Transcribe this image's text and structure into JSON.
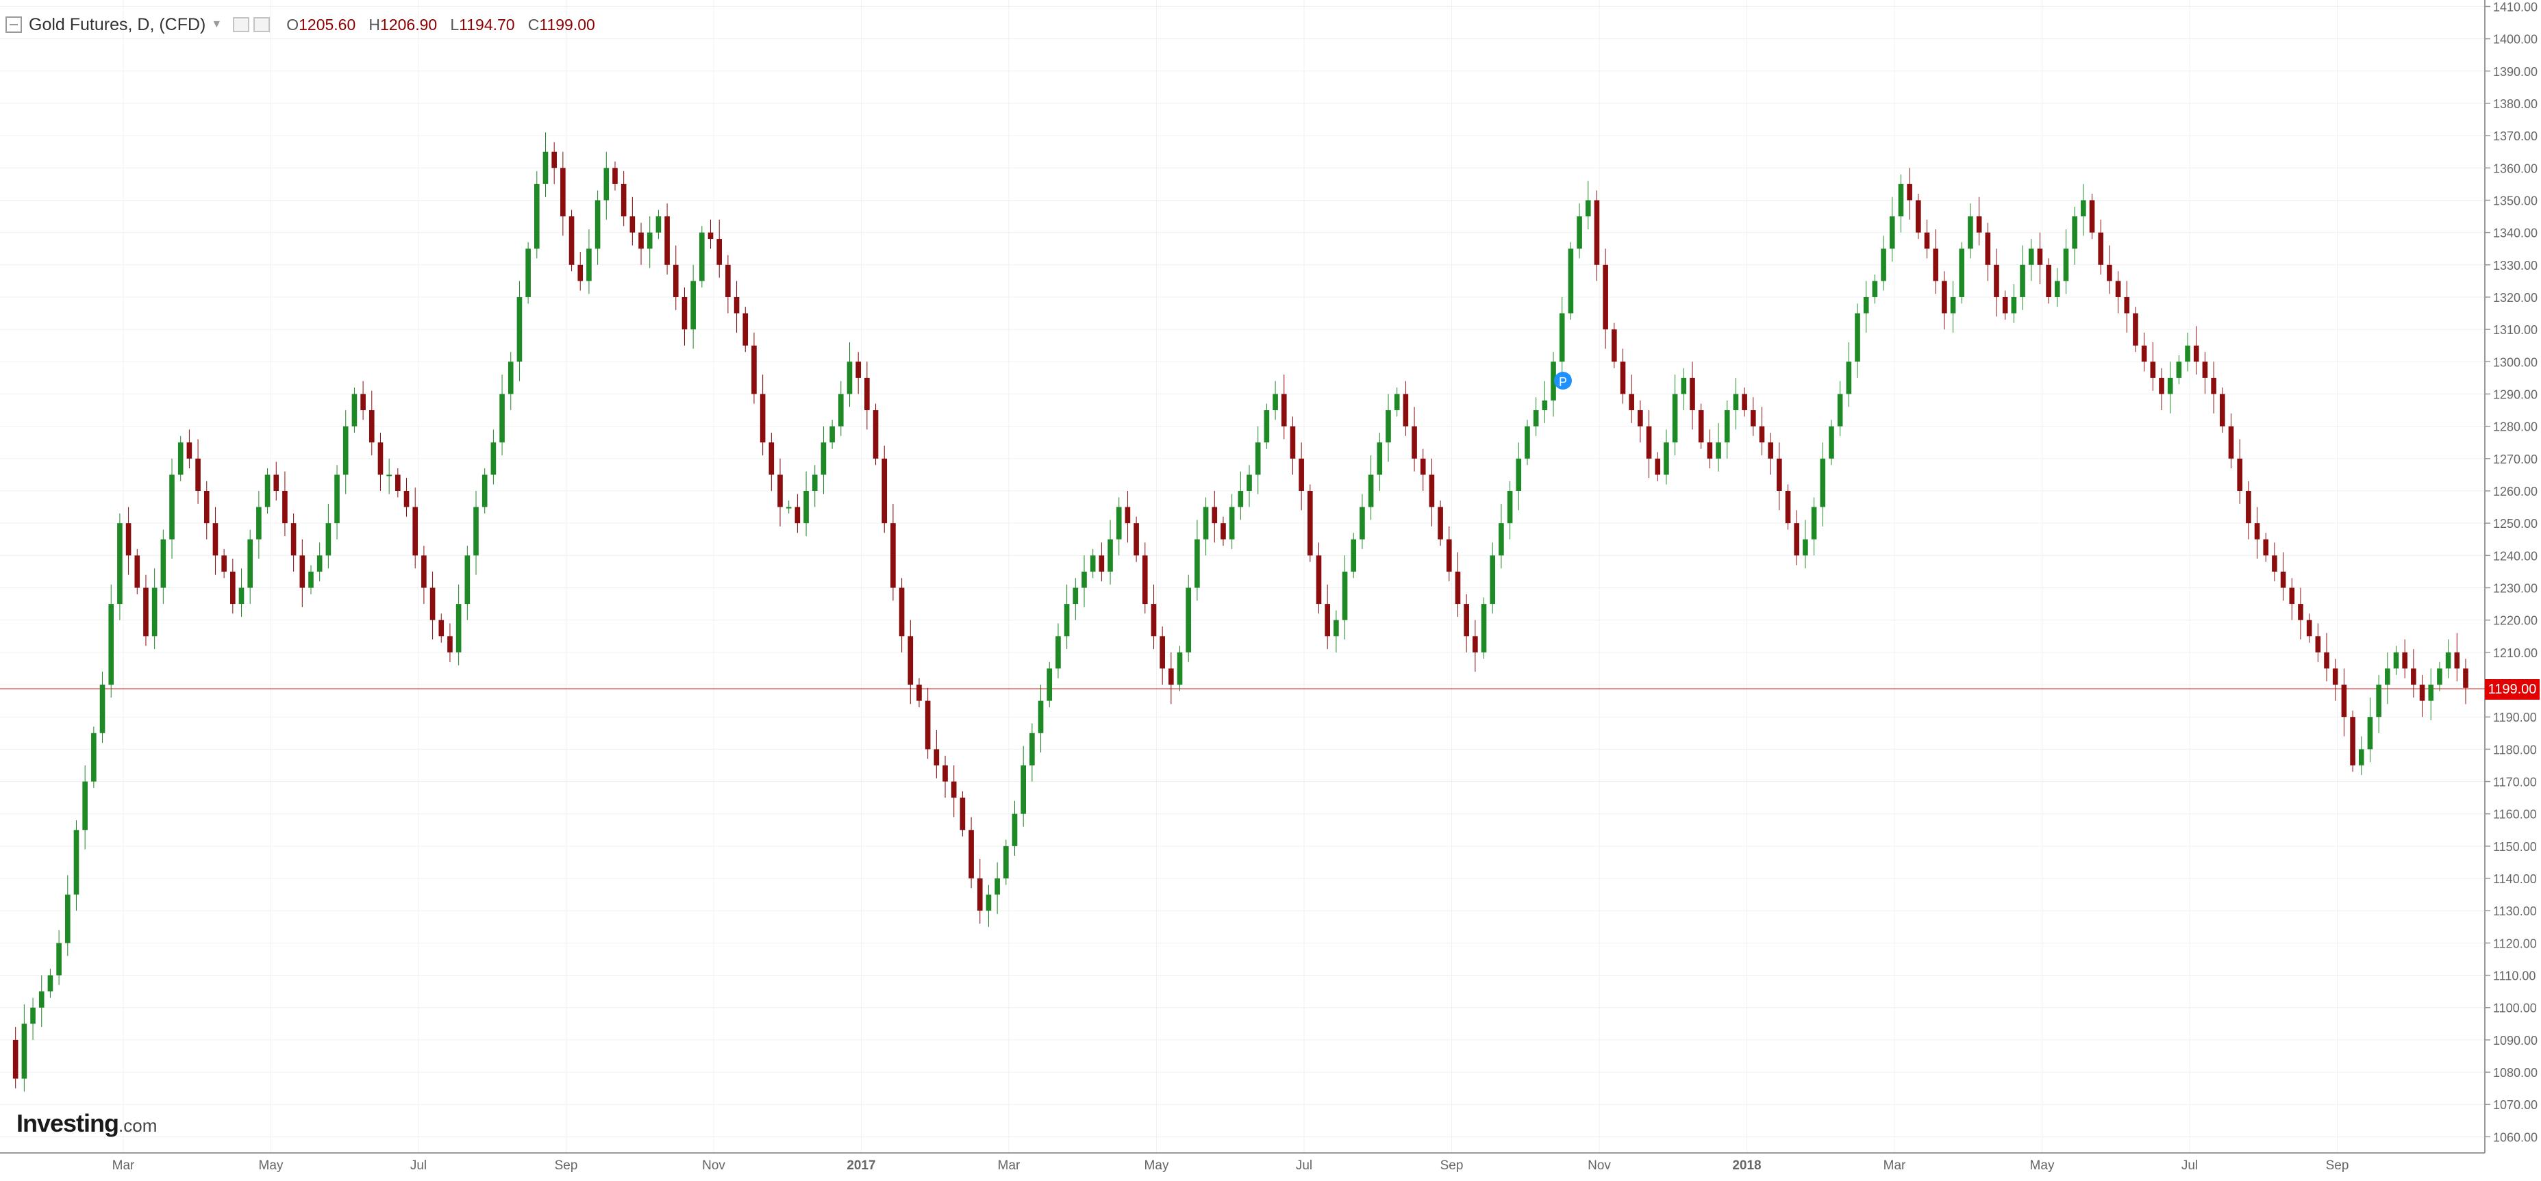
{
  "header": {
    "title": "Gold Futures, D, (CFD)",
    "open_label": "O",
    "open": "1205.60",
    "high_label": "H",
    "high": "1206.90",
    "low_label": "L",
    "low": "1194.70",
    "close_label": "C",
    "close": "1199.00"
  },
  "brand": {
    "name": "Investing",
    "suffix": ".com"
  },
  "colors": {
    "up": "#1e8a26",
    "down": "#8b0d0d",
    "grid": "#f0f0f0",
    "last_price": "#e30000",
    "axis": "#666666"
  },
  "icons": [
    "collapse-icon",
    "dropdown-caret-icon",
    "settings-icon",
    "remove-icon",
    "marker-icon"
  ],
  "chart_data": {
    "type": "candlestick",
    "title": "Gold Futures, D, (CFD)",
    "timeframe": "D",
    "xlabel": "",
    "ylabel": "",
    "ylim": [
      1055,
      1412
    ],
    "y_ticks": [
      1060,
      1070,
      1080,
      1090,
      1100,
      1110,
      1120,
      1130,
      1140,
      1150,
      1160,
      1170,
      1180,
      1190,
      1200,
      1210,
      1220,
      1230,
      1240,
      1250,
      1260,
      1270,
      1280,
      1290,
      1300,
      1310,
      1320,
      1330,
      1340,
      1350,
      1360,
      1370,
      1380,
      1390,
      1400,
      1410
    ],
    "x_ticks": [
      "Mar",
      "May",
      "Jul",
      "Sep",
      "Nov",
      "2017",
      "Mar",
      "May",
      "Jul",
      "Sep",
      "Nov",
      "2018",
      "Mar",
      "May",
      "Jul",
      "Sep"
    ],
    "last_price": "1199.00",
    "annotation": "P",
    "grid": true,
    "price_axis": "right",
    "series": [
      {
        "name": "Gold Futures",
        "values": [
          1090,
          1078,
          1095,
          1100,
          1105,
          1110,
          1120,
          1135,
          1155,
          1170,
          1185,
          1200,
          1225,
          1250,
          1240,
          1230,
          1215,
          1230,
          1245,
          1265,
          1275,
          1270,
          1260,
          1250,
          1240,
          1235,
          1225,
          1230,
          1245,
          1255,
          1265,
          1260,
          1250,
          1240,
          1230,
          1235,
          1240,
          1250,
          1265,
          1280,
          1290,
          1285,
          1275,
          1265,
          1265,
          1260,
          1255,
          1240,
          1230,
          1220,
          1215,
          1210,
          1225,
          1240,
          1255,
          1265,
          1275,
          1290,
          1300,
          1320,
          1335,
          1355,
          1365,
          1360,
          1345,
          1330,
          1325,
          1335,
          1350,
          1360,
          1355,
          1345,
          1340,
          1335,
          1340,
          1345,
          1330,
          1320,
          1310,
          1325,
          1340,
          1338,
          1330,
          1320,
          1315,
          1305,
          1290,
          1275,
          1265,
          1255,
          1255,
          1250,
          1260,
          1265,
          1275,
          1280,
          1290,
          1300,
          1295,
          1285,
          1270,
          1250,
          1230,
          1215,
          1200,
          1195,
          1180,
          1175,
          1170,
          1165,
          1155,
          1140,
          1130,
          1135,
          1140,
          1150,
          1160,
          1175,
          1185,
          1195,
          1205,
          1215,
          1225,
          1230,
          1235,
          1240,
          1235,
          1245,
          1255,
          1250,
          1240,
          1225,
          1215,
          1205,
          1200,
          1210,
          1230,
          1245,
          1255,
          1250,
          1245,
          1255,
          1260,
          1265,
          1275,
          1285,
          1290,
          1280,
          1270,
          1260,
          1240,
          1225,
          1215,
          1220,
          1235,
          1245,
          1255,
          1265,
          1275,
          1285,
          1290,
          1280,
          1270,
          1265,
          1255,
          1245,
          1235,
          1225,
          1215,
          1210,
          1225,
          1240,
          1250,
          1260,
          1270,
          1280,
          1285,
          1288,
          1300,
          1315,
          1335,
          1345,
          1350,
          1330,
          1310,
          1300,
          1290,
          1285,
          1280,
          1270,
          1265,
          1275,
          1290,
          1295,
          1285,
          1275,
          1270,
          1275,
          1285,
          1290,
          1285,
          1280,
          1275,
          1270,
          1260,
          1250,
          1240,
          1245,
          1255,
          1270,
          1280,
          1290,
          1300,
          1315,
          1320,
          1325,
          1335,
          1345,
          1355,
          1350,
          1340,
          1335,
          1325,
          1315,
          1320,
          1335,
          1345,
          1340,
          1330,
          1320,
          1315,
          1320,
          1330,
          1335,
          1330,
          1320,
          1325,
          1335,
          1345,
          1350,
          1340,
          1330,
          1325,
          1320,
          1315,
          1305,
          1300,
          1295,
          1290,
          1295,
          1300,
          1305,
          1300,
          1295,
          1290,
          1280,
          1270,
          1260,
          1250,
          1245,
          1240,
          1235,
          1230,
          1225,
          1220,
          1215,
          1210,
          1205,
          1200,
          1190,
          1175,
          1180,
          1190,
          1200,
          1205,
          1210,
          1205,
          1200,
          1195,
          1200,
          1205,
          1210,
          1205,
          1199
        ]
      }
    ]
  }
}
